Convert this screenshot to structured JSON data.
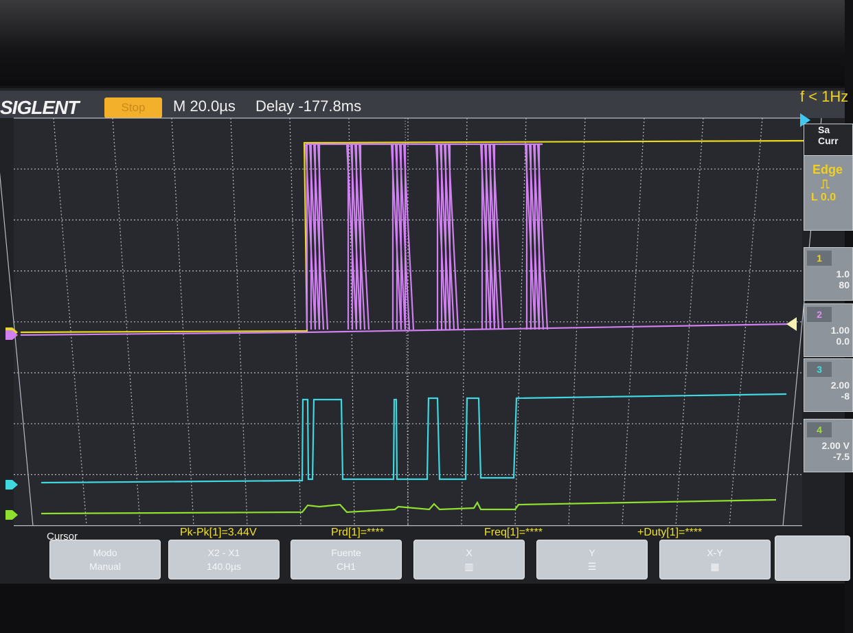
{
  "header": {
    "brand": "SIGLENT",
    "run_state": "Stop",
    "timebase": "M 20.0µs",
    "delay": "Delay -177.8ms",
    "trigger_status": "f < 1Hz"
  },
  "right_panel": {
    "acq": [
      "Sa",
      "Curr"
    ],
    "trigger": {
      "type": "Edge",
      "level": "L 0.0"
    },
    "channels": [
      {
        "num": "1",
        "line1": "1.0",
        "line2": "80",
        "color": "#e8d820"
      },
      {
        "num": "2",
        "line1": "1.00",
        "line2": "0.0",
        "color": "#e090f0"
      },
      {
        "num": "3",
        "line1": "2.00",
        "line2": "-8",
        "color": "#40e0e0"
      },
      {
        "num": "4",
        "line1": "2.00 V",
        "line2": "-7.5",
        "color": "#a0e040"
      }
    ]
  },
  "measurements": {
    "title": "Cursor",
    "pkpk": "Pk-Pk[1]=3.44V",
    "prd": "Prd[1]=****",
    "freq": "Freq[1]=****",
    "duty": "+Duty[1]=****"
  },
  "softkeys": [
    {
      "l1": "Modo",
      "l2": "Manual"
    },
    {
      "l1": "X2 - X1",
      "l2": "140.0µs"
    },
    {
      "l1": "Fuente",
      "l2": "CH1"
    },
    {
      "l1": "X",
      "l2": ""
    },
    {
      "l1": "Y",
      "l2": ""
    },
    {
      "l1": "X-Y",
      "l2": ""
    }
  ],
  "colors": {
    "ch1": "#e8d820",
    "ch2": "#d080f0",
    "ch3": "#40d8e0",
    "ch4": "#90e030",
    "grid": "#b8bcc4"
  }
}
